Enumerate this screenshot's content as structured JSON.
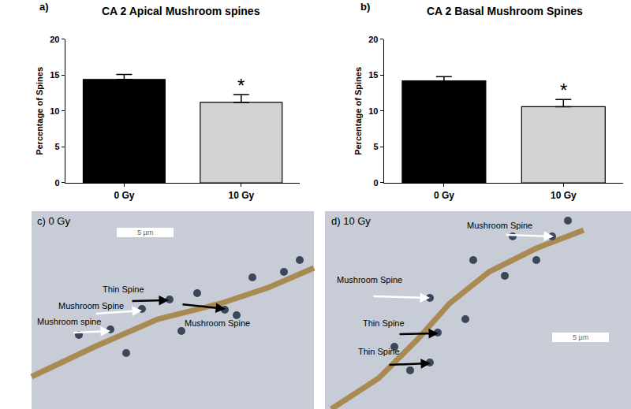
{
  "chart_data": [
    {
      "type": "bar",
      "title": "CA 2 Apical Mushroom spines",
      "ylabel": "Percentage of Spines",
      "annotations": [
        {
          "text": "a)"
        },
        {
          "text": "*",
          "category": "10 Gy"
        }
      ],
      "categories": [
        "0 Gy",
        "10 Gy"
      ],
      "values": [
        14.4,
        11.2
      ],
      "errors": [
        0.7,
        1.1
      ],
      "colors": [
        "#000000",
        "#d3d3d3"
      ],
      "ylim": [
        0,
        20
      ],
      "yticks": [
        0,
        5,
        10,
        15,
        20
      ],
      "grid": false
    },
    {
      "type": "bar",
      "title": "CA 2 Basal Mushroom Spines",
      "ylabel": "Percentage of Spines",
      "annotations": [
        {
          "text": "b)"
        },
        {
          "text": "*",
          "category": "10 Gy"
        }
      ],
      "categories": [
        "0 Gy",
        "10 Gy"
      ],
      "values": [
        14.2,
        10.6
      ],
      "errors": [
        0.6,
        1.0
      ],
      "colors": [
        "#000000",
        "#d3d3d3"
      ],
      "ylim": [
        0,
        20
      ],
      "yticks": [
        0,
        5,
        10,
        15,
        20
      ],
      "grid": false
    }
  ],
  "images": [
    {
      "label": "c) 0 Gy",
      "scale_bar": "5 µm",
      "arrows": [
        {
          "text": "Mushroom spine",
          "color": "white"
        },
        {
          "text": "Mushroom Spine",
          "color": "white"
        },
        {
          "text": "Thin Spine",
          "color": "black"
        },
        {
          "text": "Mushroom Spine",
          "color": "black"
        }
      ]
    },
    {
      "label": "d) 10 Gy",
      "scale_bar": "5 µm",
      "arrows": [
        {
          "text": "Mushroom Spine",
          "color": "white"
        },
        {
          "text": "Mushroom Spine",
          "color": "white"
        },
        {
          "text": "Thin Spine",
          "color": "black"
        },
        {
          "text": "Thin Spine",
          "color": "black"
        }
      ]
    }
  ]
}
